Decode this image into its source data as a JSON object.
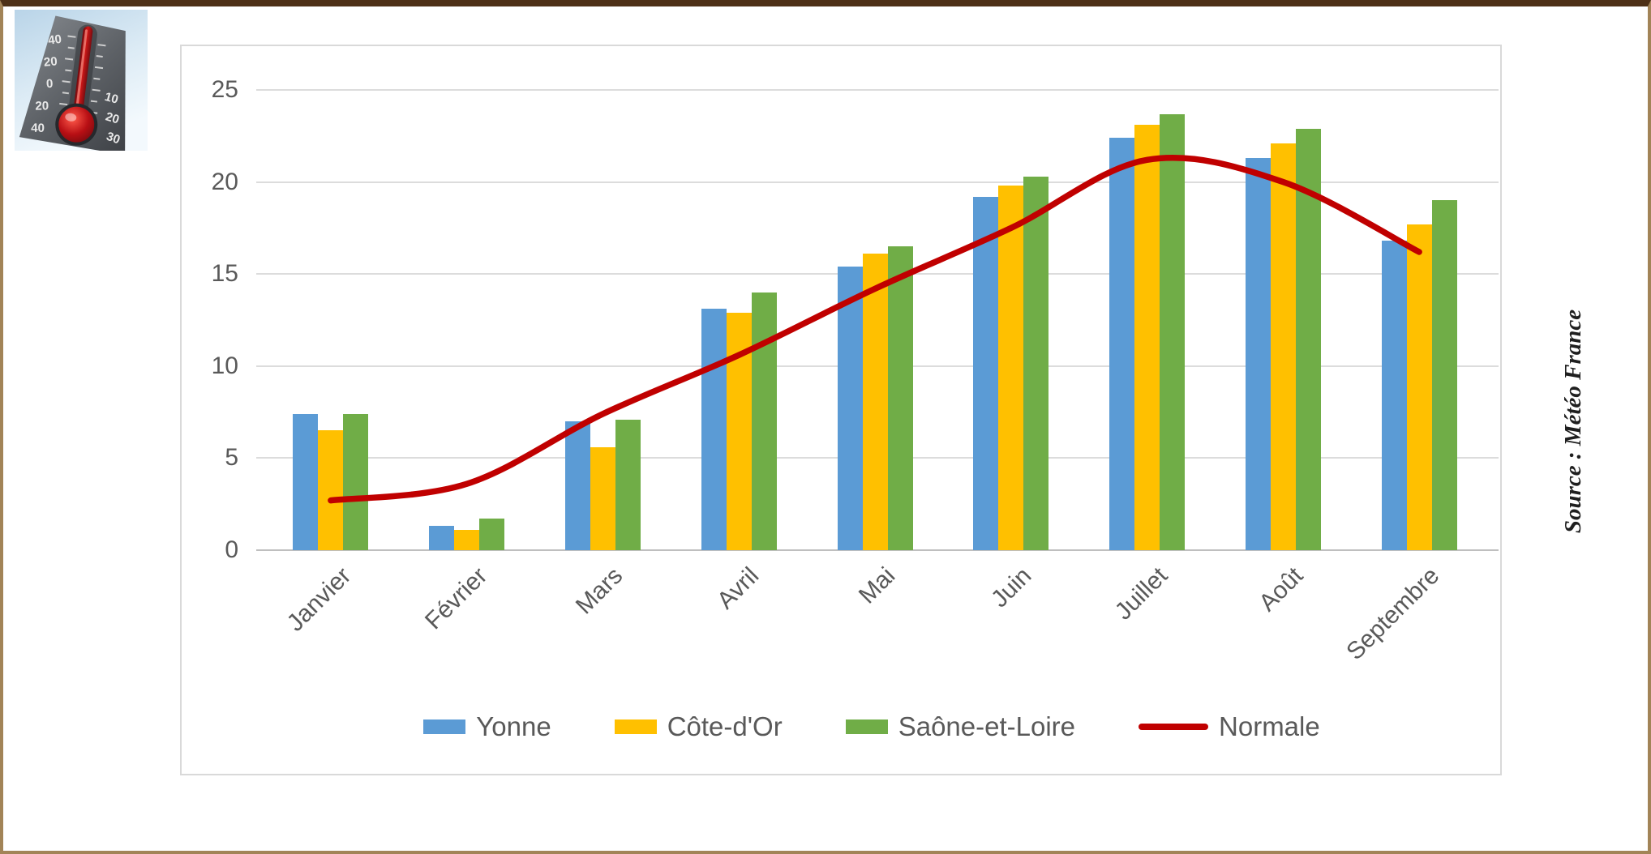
{
  "page": {
    "border_side_color": "#a28457",
    "border_top_color": "#4e3118",
    "background": "#ffffff"
  },
  "source_note": "Source : Météo France",
  "panel": {
    "border_color": "#d9d9d9",
    "gridline_color": "#dcdcdc",
    "axis_color": "#bfbfbf",
    "label_color": "#595959"
  },
  "thermometer": {
    "description": "photo of metallic thermometer with red bulb on sky background",
    "left_scale": [
      "40",
      "20",
      "0",
      "20",
      "40"
    ],
    "right_scale": [
      "10",
      "20",
      "30"
    ]
  },
  "chart_data": {
    "type": "combo",
    "title": "",
    "xlabel": "",
    "ylabel": "",
    "categories": [
      "Janvier",
      "Février",
      "Mars",
      "Avril",
      "Mai",
      "Juin",
      "Juillet",
      "Août",
      "Septembre"
    ],
    "series": [
      {
        "name": "Yonne",
        "type": "bar",
        "color": "#5B9BD5",
        "values": [
          7.4,
          1.3,
          7.0,
          13.1,
          15.4,
          19.2,
          22.4,
          21.3,
          16.8
        ]
      },
      {
        "name": "Côte-d'Or",
        "type": "bar",
        "color": "#FFC000",
        "values": [
          6.5,
          1.1,
          5.6,
          12.9,
          16.1,
          19.8,
          23.1,
          22.1,
          17.7
        ]
      },
      {
        "name": "Saône-et-Loire",
        "type": "bar",
        "color": "#70AD47",
        "values": [
          7.4,
          1.7,
          7.1,
          14.0,
          16.5,
          20.3,
          23.7,
          22.9,
          19.0
        ]
      },
      {
        "name": "Normale",
        "type": "line",
        "color": "#C00000",
        "values": [
          2.7,
          3.6,
          7.4,
          10.6,
          14.2,
          17.5,
          21.2,
          20.0,
          16.2
        ]
      }
    ],
    "ylim": [
      0,
      25
    ],
    "y_ticks": [
      0,
      5,
      10,
      15,
      20,
      25
    ],
    "grid": true,
    "legend_position": "bottom"
  }
}
